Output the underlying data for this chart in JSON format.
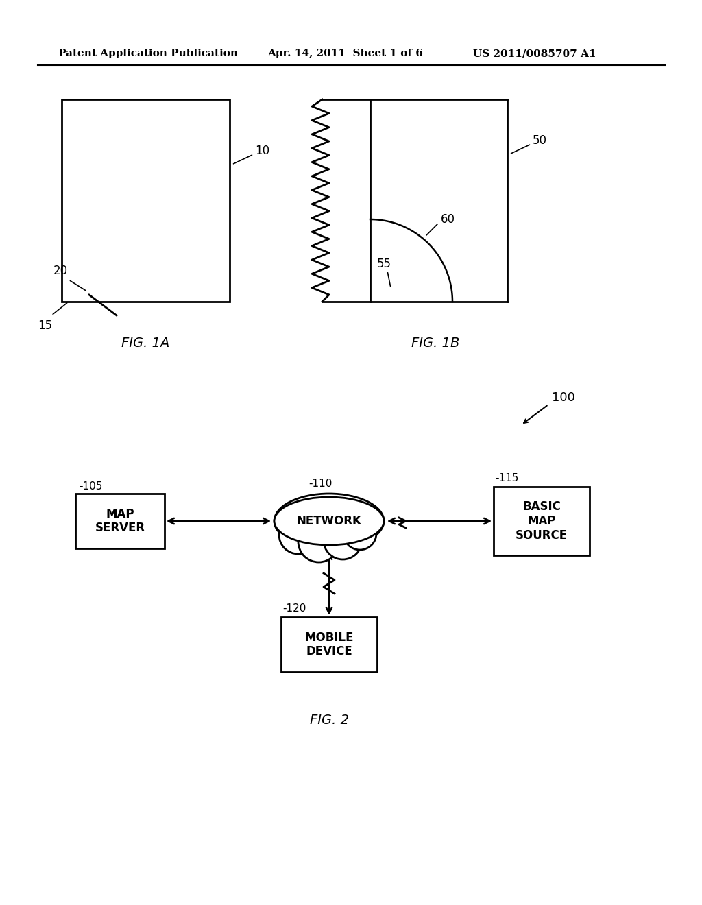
{
  "bg_color": "#ffffff",
  "header_left": "Patent Application Publication",
  "header_mid": "Apr. 14, 2011  Sheet 1 of 6",
  "header_right": "US 2011/0085707 A1",
  "fig1a_label": "FIG. 1A",
  "fig1b_label": "FIG. 1B",
  "fig2_label": "FIG. 2",
  "ref_10": "10",
  "ref_15": "15",
  "ref_20": "20",
  "ref_50": "50",
  "ref_55": "55",
  "ref_60": "60",
  "ref_100": "100",
  "ref_105": "105",
  "ref_110": "110",
  "ref_115": "115",
  "ref_120": "120",
  "box_map_server": "MAP\nSERVER",
  "box_network": "NETWORK",
  "box_basic_map": "BASIC\nMAP\nSOURCE",
  "box_mobile": "MOBILE\nDEVICE"
}
